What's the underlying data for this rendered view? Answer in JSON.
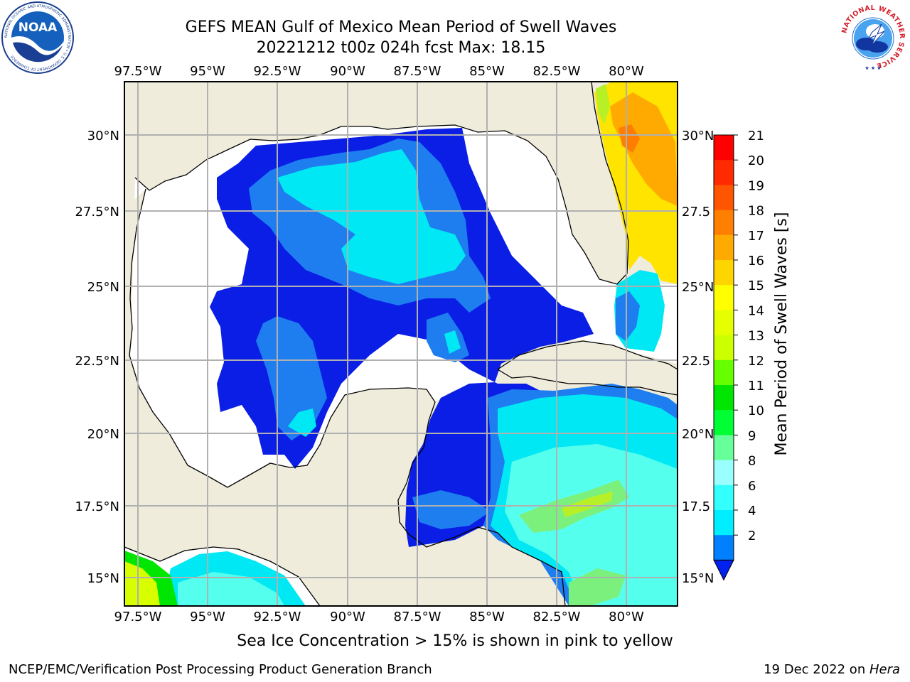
{
  "title": {
    "line1": "GEFS MEAN Gulf of Mexico Mean Period of Swell Waves",
    "line2": "20221212 t00z 024h fcst   Max: 18.15"
  },
  "caption": "Sea Ice Concentration > 15% is shown in pink to yellow",
  "footer": {
    "left": "NCEP/EMC/Verification Post Processing Product Generation Branch",
    "right_date": "19 Dec 2022 on ",
    "right_host": "Hera"
  },
  "logos": {
    "left": "noaa-logo",
    "left_text": "NOAA",
    "left_ring": "NATIONAL OCEANIC AND ATMOSPHERIC ADMINISTRATION • U.S. DEPARTMENT OF COMMERCE",
    "right": "nws-logo",
    "right_ring": "NATIONAL WEATHER SERVICE"
  },
  "map": {
    "lon_labels": [
      "97.5°W",
      "95°W",
      "92.5°W",
      "90°W",
      "87.5°W",
      "85°W",
      "82.5°W",
      "80°W"
    ],
    "lat_labels": [
      "30°N",
      "27.5°N",
      "25°N",
      "22.5°N",
      "20°N",
      "17.5°N",
      "15°N"
    ],
    "right_lat_labels": [
      "30°N",
      "27.5",
      "25°N",
      "22.5",
      "20°N",
      "17.5",
      "15°N"
    ],
    "land_color": "#efecdc",
    "grid_color": "#b0b0b0"
  },
  "colorbar": {
    "label": "Mean Period of Swell Waves [s]",
    "tick_labels": [
      "21",
      "20",
      "19",
      "18",
      "17",
      "16",
      "15",
      "14",
      "13",
      "12",
      "11",
      "10",
      "9",
      "8",
      "6",
      "4",
      "2"
    ],
    "colors": [
      "#ff0000",
      "#ff2a00",
      "#ff5500",
      "#ff8000",
      "#ffaa00",
      "#ffd500",
      "#ffff00",
      "#e6ff00",
      "#ccff00",
      "#66ff00",
      "#00e600",
      "#00ff33",
      "#66ff99",
      "#99ffff",
      "#33ffff",
      "#00eeff",
      "#0080ff"
    ],
    "extend_color": "#0022ee"
  },
  "chart_data": {
    "type": "heatmap",
    "title": "GEFS MEAN Gulf of Mexico Mean Period of Swell Waves",
    "subtitle": "20221212 t00z 024h fcst   Max: 18.15",
    "xlabel": "",
    "ylabel": "",
    "xlim": [
      -98,
      -78
    ],
    "ylim": [
      14,
      31.5
    ],
    "colorbar_label": "Mean Period of Swell Waves [s]",
    "levels": [
      2,
      4,
      6,
      8,
      9,
      10,
      11,
      12,
      13,
      14,
      15,
      16,
      17,
      18,
      19,
      20,
      21
    ],
    "max": 18.15,
    "regions": [
      {
        "area": "central Gulf of Mexico",
        "period_range_s": [
          0,
          4
        ]
      },
      {
        "area": "northeast Gulf",
        "period_range_s": [
          4,
          8
        ]
      },
      {
        "area": "Atlantic east of Florida",
        "period_range_s": [
          14,
          18.15
        ]
      },
      {
        "area": "western Caribbean",
        "period_range_s": [
          4,
          13
        ]
      },
      {
        "area": "Pacific south of Mexico",
        "period_range_s": [
          6,
          14
        ]
      }
    ]
  }
}
